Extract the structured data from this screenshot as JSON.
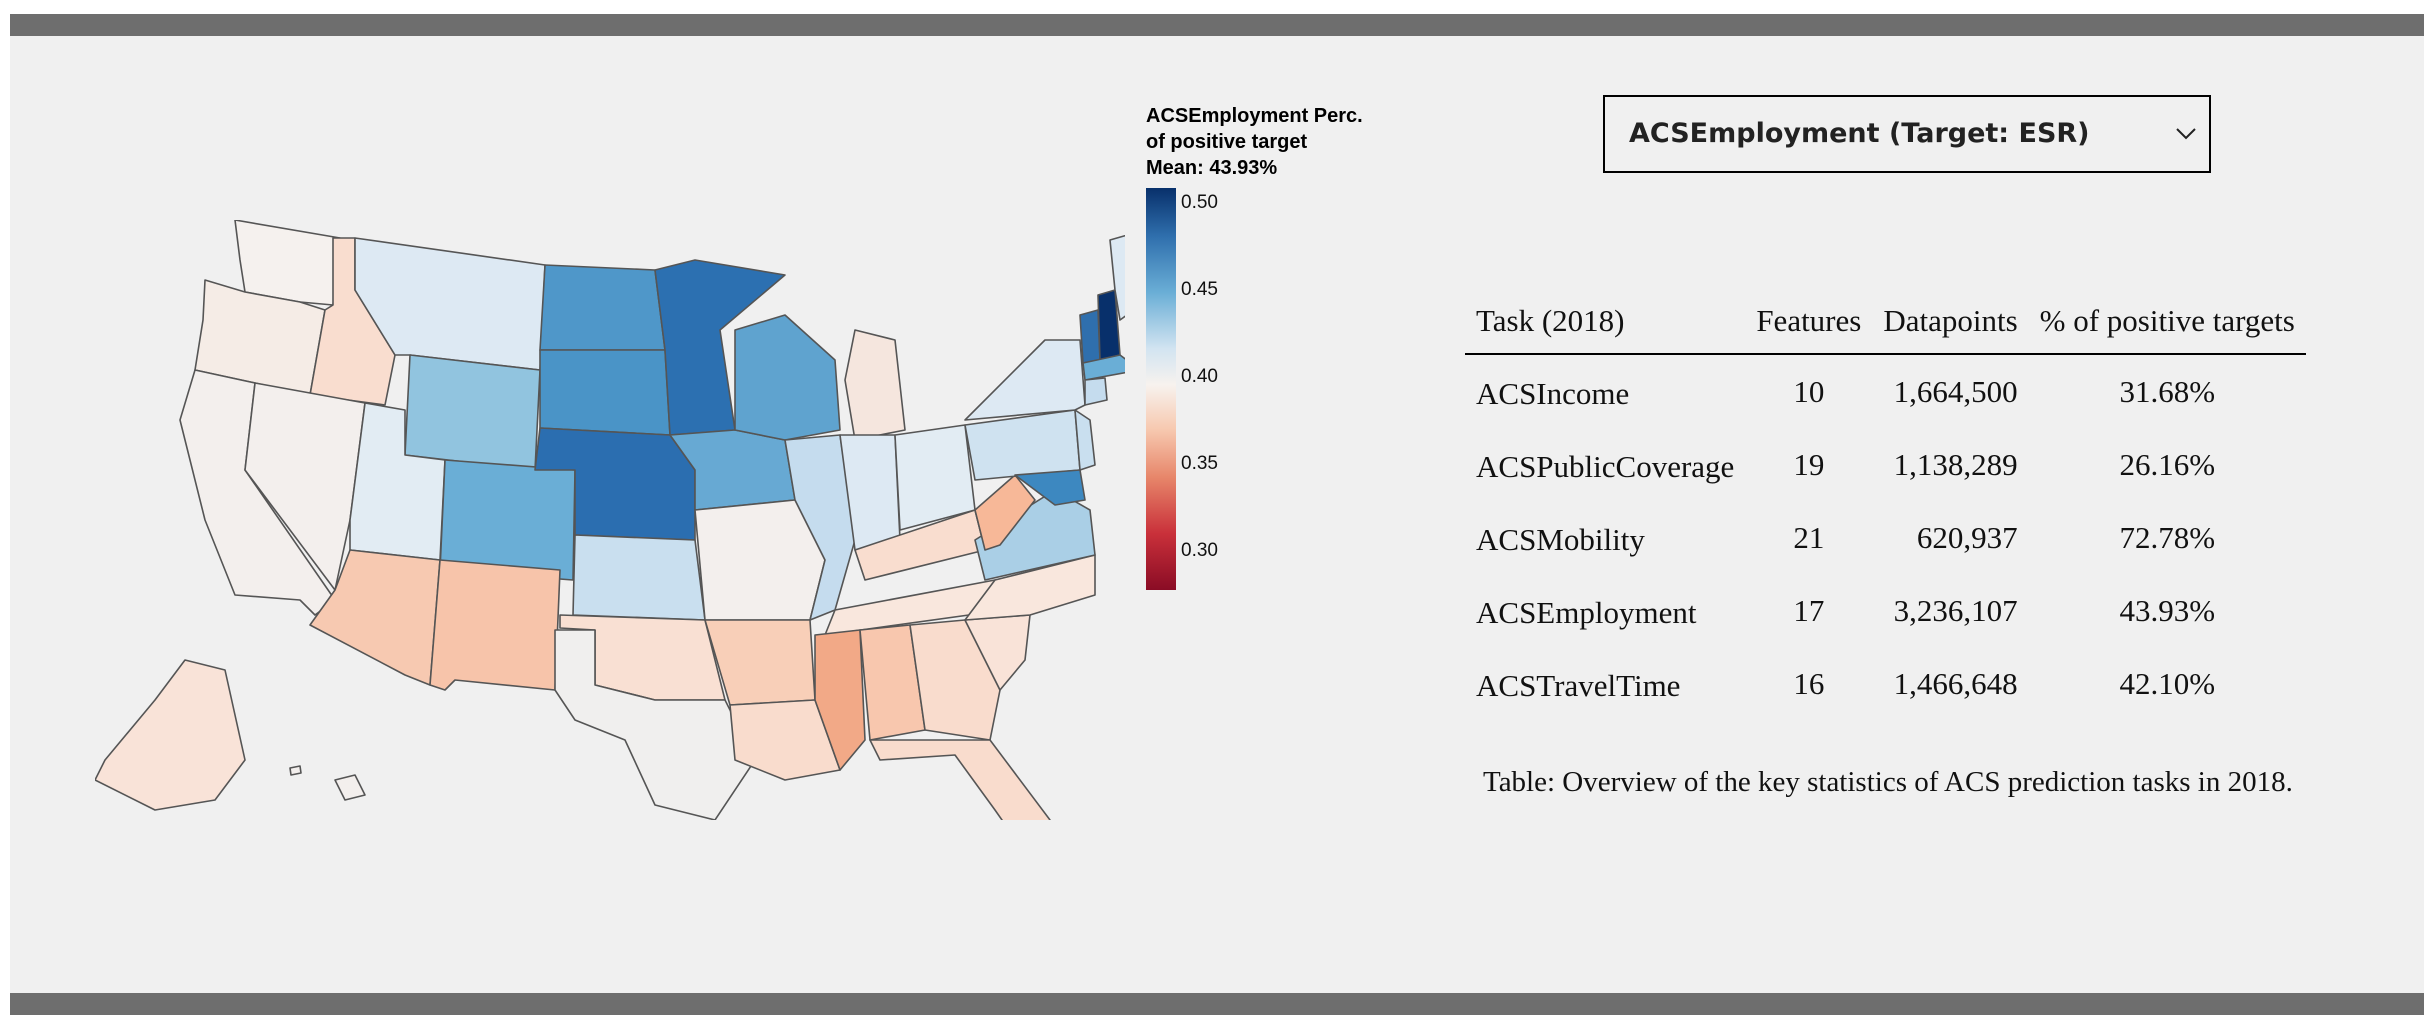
{
  "colors": {
    "frame_band": "#6e6e6e",
    "panel_bg": "#f0f0f0",
    "state_stroke": "#555555"
  },
  "legend": {
    "title_lines": [
      "ACSEmployment Perc.",
      "of positive target",
      "Mean: 43.93%"
    ],
    "ticks": [
      "0.50",
      "0.45",
      "0.40",
      "0.35",
      "0.30"
    ]
  },
  "dropdown": {
    "selected": "ACSEmployment (Target: ESR)",
    "icon": "chevron-down-icon"
  },
  "table": {
    "headers": [
      "Task (2018)",
      "Features",
      "Datapoints",
      "% of positive targets"
    ],
    "rows": [
      [
        "ACSIncome",
        "10",
        "1,664,500",
        "31.68%"
      ],
      [
        "ACSPublicCoverage",
        "19",
        "1,138,289",
        "26.16%"
      ],
      [
        "ACSMobility",
        "21",
        "620,937",
        "72.78%"
      ],
      [
        "ACSEmployment",
        "17",
        "3,236,107",
        "43.93%"
      ],
      [
        "ACSTravelTime",
        "16",
        "1,466,648",
        "42.10%"
      ]
    ],
    "caption": "Table: Overview of the key statistics of ACS prediction tasks in 2018."
  }
}
